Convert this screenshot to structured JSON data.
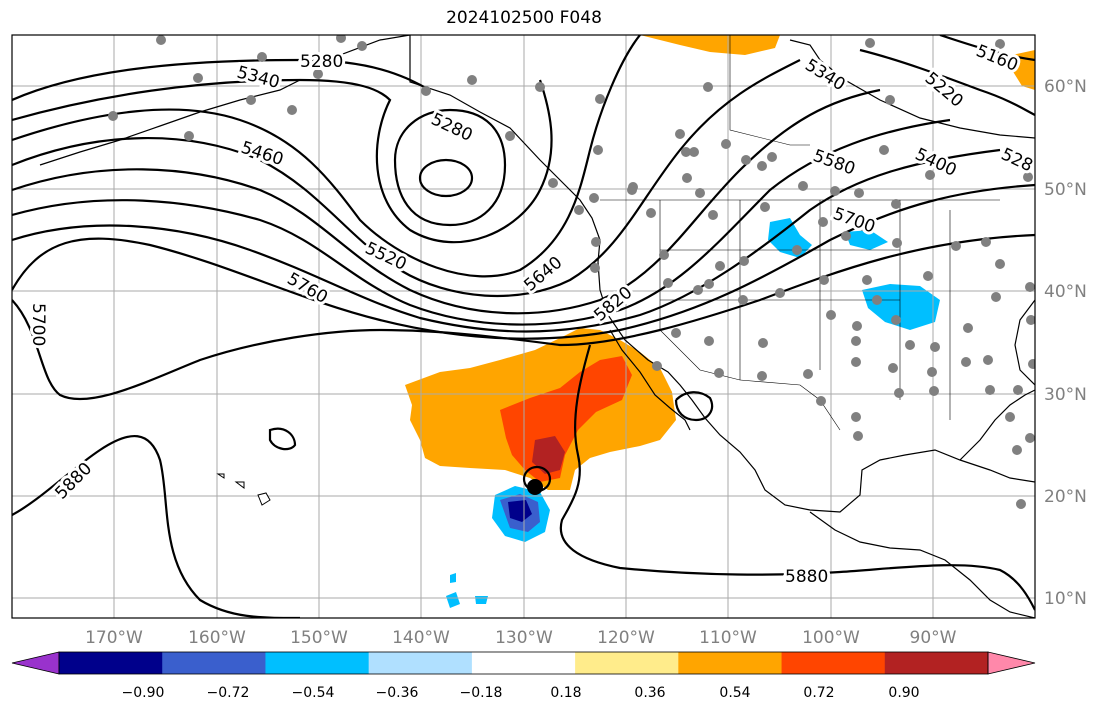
{
  "title": "2024102500 F048",
  "map": {
    "lat_ticks": [
      "60°N",
      "50°N",
      "40°N",
      "30°N",
      "20°N",
      "10°N"
    ],
    "lon_ticks": [
      "170°W",
      "160°W",
      "150°W",
      "140°W",
      "130°W",
      "120°W",
      "110°W",
      "100°W",
      "90°W"
    ],
    "contour_labels": [
      "5280",
      "5340",
      "5280",
      "5460",
      "5520",
      "5760",
      "5700",
      "5880",
      "5640",
      "5820",
      "5340",
      "5220",
      "5400",
      "5580",
      "5700",
      "5160",
      "528",
      "5880"
    ],
    "fill_colors": {
      "land_line": "#000000",
      "orange": "#FFA500",
      "red_orange": "#FF4500",
      "dark_red": "#B22222",
      "light_blue": "#00BFFF",
      "dark_blue": "#00008B",
      "medium_blue": "#3A5FCD",
      "station": "#808080"
    }
  },
  "colorbar": {
    "colors": [
      "#9932CC",
      "#00008B",
      "#3A5FCD",
      "#00BFFF",
      "#B0E0FF",
      "#FFFFFF",
      "#FFEC8B",
      "#FFA500",
      "#FF4500",
      "#B22222",
      "#FF88AA"
    ],
    "ticks": [
      "−0.90",
      "−0.72",
      "−0.54",
      "−0.36",
      "−0.18",
      "0.18",
      "0.36",
      "0.54",
      "0.72",
      "0.90"
    ]
  }
}
